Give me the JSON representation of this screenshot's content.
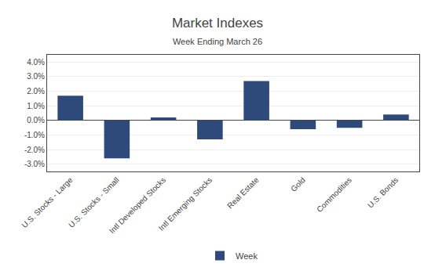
{
  "chart_data": {
    "type": "bar",
    "title": "Market Indexes",
    "subtitle": "Week Ending March 26",
    "categories": [
      "U.S. Stocks - Large",
      "U.S. Stocks - Small",
      "Intl Developed Stocks",
      "Intl Emerging Stocks",
      "Real Estate",
      "Gold",
      "Commodities",
      "U.S. Bonds"
    ],
    "series": [
      {
        "name": "Week",
        "color": "#2E4A7A",
        "values": [
          1.7,
          -2.6,
          0.2,
          -1.3,
          2.7,
          -0.6,
          -0.5,
          0.4
        ]
      }
    ],
    "ylim": [
      -3.5,
      4.5
    ],
    "yticks": [
      {
        "value": -3.0,
        "label": "-3.0%"
      },
      {
        "value": -2.0,
        "label": "-2.0%"
      },
      {
        "value": -1.0,
        "label": "-1.0%"
      },
      {
        "value": 0.0,
        "label": "0.0%"
      },
      {
        "value": 1.0,
        "label": "1.0%"
      },
      {
        "value": 2.0,
        "label": "2.0%"
      },
      {
        "value": 3.0,
        "label": "3.0%"
      },
      {
        "value": 4.0,
        "label": "4.0%"
      }
    ],
    "grid": true,
    "legend": "bottom"
  }
}
